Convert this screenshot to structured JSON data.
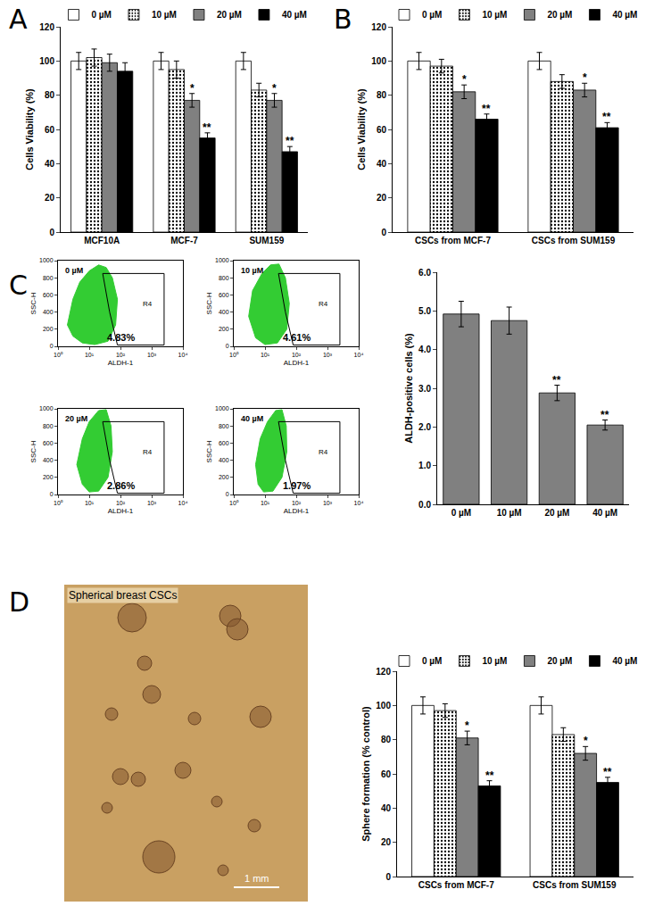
{
  "panel_labels": [
    "A",
    "B",
    "C",
    "D"
  ],
  "image": {
    "caption": "Spherical breast CSCs",
    "scale_bar": "1 mm"
  },
  "chart_data": [
    {
      "type": "bar",
      "categories": [
        "MCF10A",
        "MCF-7",
        "SUM159"
      ],
      "ylabel": "Cells Viability (%)",
      "ylim": [
        0,
        120
      ],
      "yticks": [
        0,
        20,
        40,
        60,
        80,
        100,
        120
      ],
      "legend": "top",
      "series": [
        {
          "name": "0 µM",
          "color": "#ffffff",
          "values": [
            100,
            100,
            100
          ],
          "errors": [
            5,
            5,
            5
          ],
          "significance": [
            null,
            null,
            null
          ]
        },
        {
          "name": "10 µM",
          "color": "#ffffff",
          "marker": "dots",
          "values": [
            102,
            95,
            83
          ],
          "errors": [
            5,
            5,
            4
          ],
          "significance": [
            null,
            null,
            null
          ]
        },
        {
          "name": "20 µM",
          "color": "#808080",
          "values": [
            99,
            77,
            77
          ],
          "errors": [
            5,
            4,
            4
          ],
          "significance": [
            null,
            "*",
            "*"
          ]
        },
        {
          "name": "40 µM",
          "color": "#000000",
          "values": [
            94,
            55,
            47
          ],
          "errors": [
            5,
            3,
            3
          ],
          "significance": [
            null,
            "**",
            "**"
          ]
        }
      ]
    },
    {
      "type": "bar",
      "categories": [
        "CSCs from MCF-7",
        "CSCs from SUM159"
      ],
      "ylabel": "Cells Viability (%)",
      "ylim": [
        0,
        120
      ],
      "yticks": [
        0,
        20,
        40,
        60,
        80,
        100,
        120
      ],
      "legend": "top",
      "series": [
        {
          "name": "0 µM",
          "color": "#ffffff",
          "values": [
            100,
            100
          ],
          "errors": [
            5,
            5
          ],
          "significance": [
            null,
            null
          ]
        },
        {
          "name": "10 µM",
          "color": "#ffffff",
          "marker": "dots",
          "values": [
            97,
            88
          ],
          "errors": [
            4,
            4
          ],
          "significance": [
            null,
            null
          ]
        },
        {
          "name": "20 µM",
          "color": "#808080",
          "values": [
            82,
            83
          ],
          "errors": [
            4,
            4
          ],
          "significance": [
            "*",
            "*"
          ]
        },
        {
          "name": "40 µM",
          "color": "#000000",
          "values": [
            66,
            61
          ],
          "errors": [
            3,
            3
          ],
          "significance": [
            "**",
            "**"
          ]
        }
      ]
    },
    {
      "type": "scatter",
      "title": "0 µM",
      "xlabel": "ALDH-1",
      "ylabel": "SSC-H",
      "log": "x",
      "color": "#33cc33",
      "xlim": [
        1,
        10000
      ],
      "xticks": [
        {
          "value": 1,
          "label": "10⁰"
        },
        {
          "value": 10,
          "label": "10¹"
        },
        {
          "value": 100,
          "label": "10²"
        },
        {
          "value": 1000,
          "label": "10³"
        },
        {
          "value": 10000,
          "label": "10⁴"
        }
      ],
      "ylim": [
        0,
        1000
      ],
      "yticks": [
        0,
        200,
        400,
        600,
        800,
        1000
      ],
      "population_outline": {
        "x": [
          2,
          3,
          5,
          10,
          20,
          35,
          55,
          80,
          70,
          40,
          15,
          6,
          3,
          2
        ],
        "y": [
          250,
          550,
          750,
          880,
          950,
          920,
          800,
          550,
          250,
          60,
          20,
          40,
          120,
          250
        ]
      },
      "gate": {
        "name": "R4",
        "x": [
          27,
          2500,
          2500,
          80,
          45,
          27
        ],
        "y": [
          850,
          850,
          15,
          15,
          400,
          850
        ]
      },
      "annotations": [
        "4.83%"
      ]
    },
    {
      "type": "scatter",
      "title": "10 µM",
      "xlabel": "ALDH-1",
      "ylabel": "SSC-H",
      "log": "x",
      "color": "#33cc33",
      "xlim": [
        1,
        10000
      ],
      "xticks": [
        {
          "value": 1,
          "label": "10⁰"
        },
        {
          "value": 10,
          "label": "10¹"
        },
        {
          "value": 100,
          "label": "10²"
        },
        {
          "value": 1000,
          "label": "10³"
        },
        {
          "value": 10000,
          "label": "10⁴"
        }
      ],
      "ylim": [
        0,
        1000
      ],
      "yticks": [
        0,
        200,
        400,
        600,
        800,
        1000
      ],
      "population_outline": {
        "x": [
          3,
          4,
          8,
          15,
          28,
          45,
          60,
          50,
          25,
          10,
          5,
          3
        ],
        "y": [
          350,
          650,
          850,
          950,
          960,
          800,
          500,
          200,
          40,
          20,
          100,
          350
        ]
      },
      "gate": {
        "name": "R4",
        "x": [
          27,
          2500,
          2500,
          80,
          45,
          27
        ],
        "y": [
          850,
          850,
          15,
          15,
          400,
          850
        ]
      },
      "annotations": [
        "4.61%"
      ]
    },
    {
      "type": "scatter",
      "title": "20 µM",
      "xlabel": "ALDH-1",
      "ylabel": "SSC-H",
      "log": "x",
      "color": "#33cc33",
      "xlim": [
        1,
        10000
      ],
      "xticks": [
        {
          "value": 1,
          "label": "10⁰"
        },
        {
          "value": 10,
          "label": "10¹"
        },
        {
          "value": 100,
          "label": "10²"
        },
        {
          "value": 1000,
          "label": "10³"
        },
        {
          "value": 10000,
          "label": "10⁴"
        }
      ],
      "ylim": [
        0,
        1000
      ],
      "yticks": [
        0,
        200,
        400,
        600,
        800,
        1000
      ],
      "population_outline": {
        "x": [
          4,
          6,
          10,
          20,
          35,
          50,
          55,
          40,
          20,
          10,
          6,
          4
        ],
        "y": [
          350,
          650,
          850,
          980,
          990,
          800,
          500,
          200,
          40,
          30,
          120,
          350
        ]
      },
      "gate": {
        "name": "R4",
        "x": [
          27,
          2500,
          2500,
          80,
          45,
          27
        ],
        "y": [
          850,
          850,
          15,
          15,
          400,
          850
        ]
      },
      "annotations": [
        "2.86%"
      ]
    },
    {
      "type": "scatter",
      "title": "40 µM",
      "xlabel": "ALDH-1",
      "ylabel": "SSC-H",
      "log": "x",
      "color": "#33cc33",
      "xlim": [
        1,
        10000
      ],
      "xticks": [
        {
          "value": 1,
          "label": "10⁰"
        },
        {
          "value": 10,
          "label": "10¹"
        },
        {
          "value": 100,
          "label": "10²"
        },
        {
          "value": 1000,
          "label": "10³"
        },
        {
          "value": 10000,
          "label": "10⁴"
        }
      ],
      "ylim": [
        0,
        1000
      ],
      "yticks": [
        0,
        200,
        400,
        600,
        800,
        1000
      ],
      "population_outline": {
        "x": [
          5,
          7,
          12,
          22,
          35,
          48,
          50,
          35,
          18,
          9,
          6,
          5
        ],
        "y": [
          350,
          650,
          850,
          980,
          990,
          800,
          500,
          200,
          40,
          30,
          120,
          350
        ]
      },
      "gate": {
        "name": "R4",
        "x": [
          27,
          2500,
          2500,
          80,
          45,
          27
        ],
        "y": [
          850,
          850,
          15,
          15,
          400,
          850
        ]
      },
      "annotations": [
        "1.97%"
      ]
    },
    {
      "type": "bar",
      "categories": [
        "0 µM",
        "10 µM",
        "20 µM",
        "40 µM"
      ],
      "ylabel": "ALDH-positive cells (%)",
      "ylim": [
        0,
        6
      ],
      "yticks": [
        {
          "value": 0,
          "label": "0.0"
        },
        {
          "value": 1,
          "label": "1.0"
        },
        {
          "value": 2,
          "label": "2.0"
        },
        {
          "value": 3,
          "label": "3.0"
        },
        {
          "value": 4,
          "label": "4.0"
        },
        {
          "value": 5,
          "label": "5.0"
        },
        {
          "value": 6,
          "label": "6.0"
        }
      ],
      "color": "#808080",
      "values": [
        4.92,
        4.75,
        2.88,
        2.05
      ],
      "errors": [
        0.33,
        0.35,
        0.2,
        0.13
      ],
      "significance": [
        null,
        null,
        "**",
        "**"
      ]
    },
    {
      "type": "bar",
      "categories": [
        "CSCs from MCF-7",
        "CSCs from SUM159"
      ],
      "ylabel": "Sphere formation (% control)",
      "ylim": [
        0,
        120
      ],
      "yticks": [
        0,
        20,
        40,
        60,
        80,
        100,
        120
      ],
      "legend": "top",
      "series": [
        {
          "name": "0 µM",
          "color": "#ffffff",
          "values": [
            100,
            100
          ],
          "errors": [
            5,
            5
          ],
          "significance": [
            null,
            null
          ]
        },
        {
          "name": "10 µM",
          "color": "#ffffff",
          "marker": "dots",
          "values": [
            97,
            83
          ],
          "errors": [
            4,
            4
          ],
          "significance": [
            null,
            null
          ]
        },
        {
          "name": "20 µM",
          "color": "#808080",
          "values": [
            81,
            72
          ],
          "errors": [
            4,
            4
          ],
          "significance": [
            "*",
            "*"
          ]
        },
        {
          "name": "40 µM",
          "color": "#000000",
          "values": [
            53,
            55
          ],
          "errors": [
            3,
            3
          ],
          "significance": [
            "**",
            "**"
          ]
        }
      ]
    }
  ]
}
